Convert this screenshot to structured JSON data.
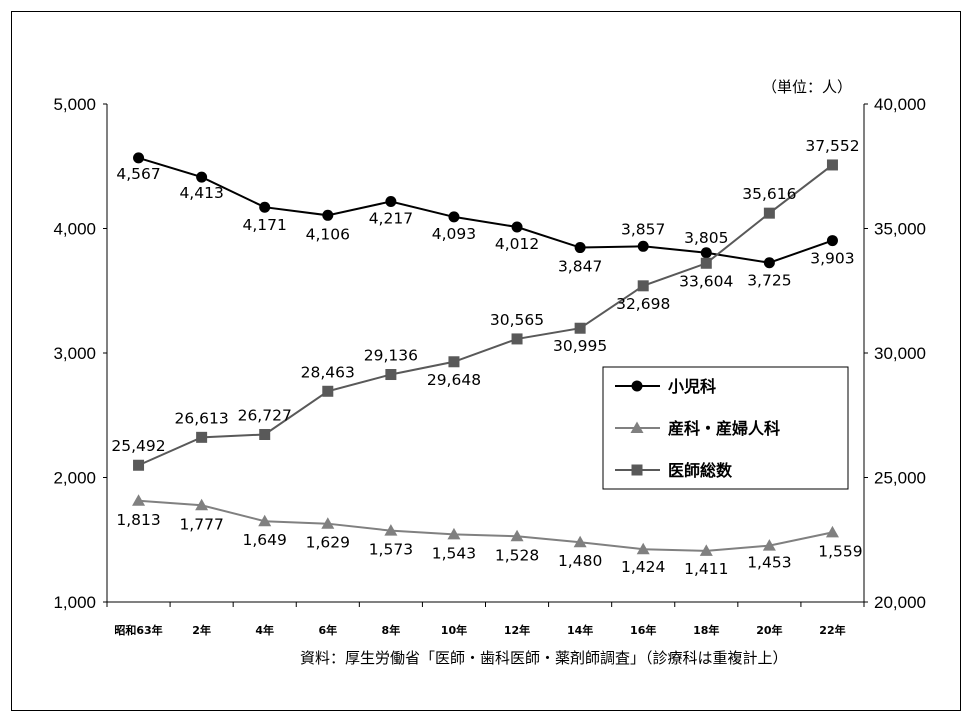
{
  "chart_data": {
    "type": "line",
    "categories": [
      "昭和63年",
      "2年",
      "4年",
      "6年",
      "8年",
      "10年",
      "12年",
      "14年",
      "16年",
      "18年",
      "20年",
      "22年"
    ],
    "y_left": {
      "min": 1000,
      "max": 5000,
      "ticks": [
        "1,000",
        "2,000",
        "3,000",
        "4,000",
        "5,000"
      ]
    },
    "y_right": {
      "min": 20000,
      "max": 40000,
      "ticks": [
        "20,000",
        "25,000",
        "30,000",
        "35,000",
        "40,000"
      ]
    },
    "unit_label": "（単位：人）",
    "source": "資料：厚生労働省「医師・歯科医師・薬剤師調査」（診療科は重複計上）",
    "grid": false,
    "legend_position": "center-right",
    "series": [
      {
        "name": "小児科",
        "axis": "left",
        "marker": "circle",
        "color": "#000000",
        "values": [
          4567,
          4413,
          4171,
          4106,
          4217,
          4093,
          4012,
          3847,
          3857,
          3805,
          3725,
          3903
        ],
        "labels": [
          "4,567",
          "4,413",
          "4,171",
          "4,106",
          "4,217",
          "4,093",
          "4,012",
          "3,847",
          "3,857",
          "3,805",
          "3,725",
          "3,903"
        ]
      },
      {
        "name": "産科・産婦人科",
        "axis": "left",
        "marker": "triangle",
        "color": "#808080",
        "values": [
          1813,
          1777,
          1649,
          1629,
          1573,
          1543,
          1528,
          1480,
          1424,
          1411,
          1453,
          1559
        ],
        "labels": [
          "1,813",
          "1,777",
          "1,649",
          "1,629",
          "1,573",
          "1,543",
          "1,528",
          "1,480",
          "1,424",
          "1,411",
          "1,453",
          "1,559"
        ]
      },
      {
        "name": "医師総数",
        "axis": "right",
        "marker": "square",
        "color": "#595959",
        "values": [
          25492,
          26613,
          26727,
          28463,
          29136,
          29648,
          30565,
          30995,
          32698,
          33604,
          35616,
          37552
        ],
        "labels": [
          "25,492",
          "26,613",
          "26,727",
          "28,463",
          "29,136",
          "29,648",
          "30,565",
          "30,995",
          "32,698",
          "33,604",
          "35,616",
          "37,552"
        ]
      }
    ]
  }
}
